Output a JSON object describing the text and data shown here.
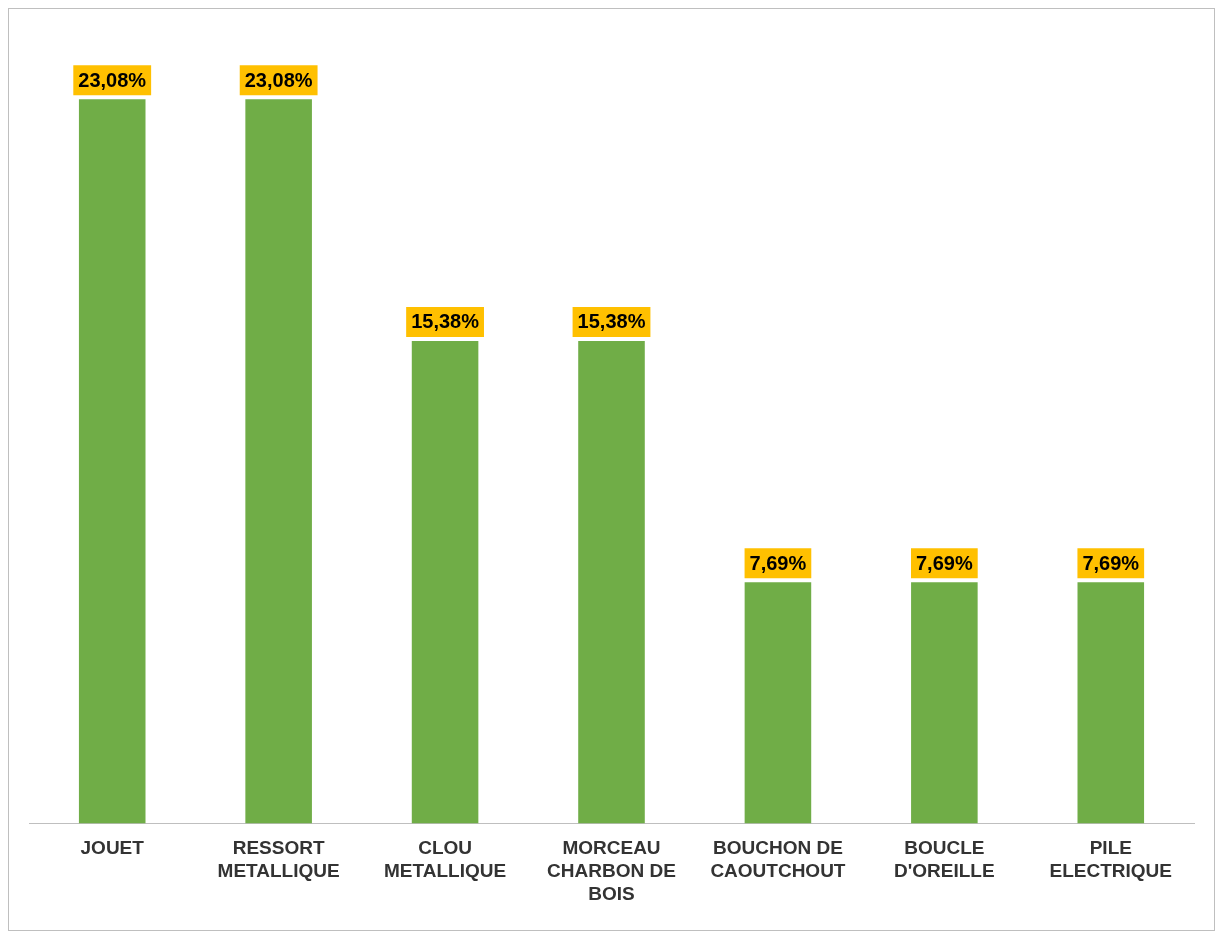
{
  "chart_data": {
    "type": "bar",
    "categories": [
      "JOUET",
      "RESSORT METALLIQUE",
      "CLOU METALLIQUE",
      "MORCEAU CHARBON DE BOIS",
      "BOUCHON DE CAOUTCHOUT",
      "BOUCLE D'OREILLE",
      "PILE ELECTRIQUE"
    ],
    "values": [
      23.08,
      23.08,
      15.38,
      15.38,
      7.69,
      7.69,
      7.69
    ],
    "value_labels": [
      "23,08%",
      "23,08%",
      "15,38%",
      "15,38%",
      "7,69%",
      "7,69%",
      "7,69%"
    ],
    "color": "#70ad47",
    "grid": false,
    "legend": false
  }
}
